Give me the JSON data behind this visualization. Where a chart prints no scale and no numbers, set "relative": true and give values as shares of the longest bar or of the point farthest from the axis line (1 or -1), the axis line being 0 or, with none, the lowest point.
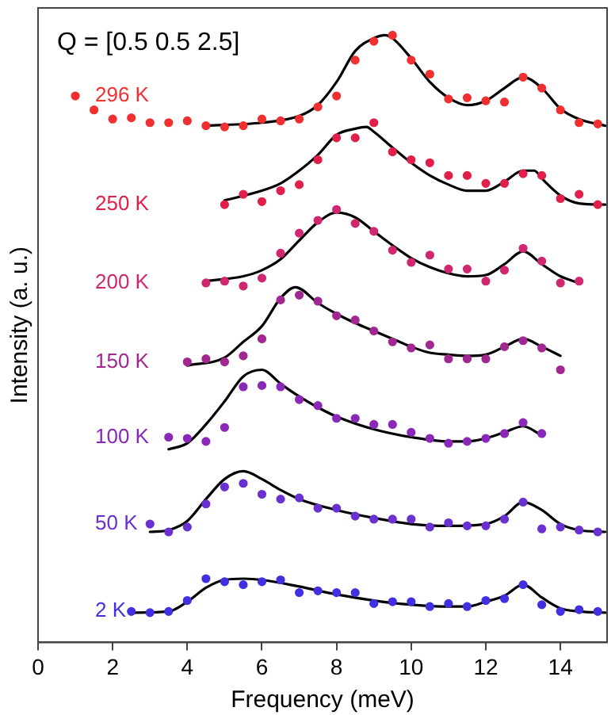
{
  "chart_data": {
    "type": "scatter",
    "title": "Q = [0.5 0.5 2.5]",
    "xlabel": "Frequency (meV)",
    "ylabel": "Intensity (a. u.)",
    "xlim": [
      0,
      15.25
    ],
    "xticks": [
      0,
      2,
      4,
      6,
      8,
      10,
      12,
      14
    ],
    "relative": true,
    "marker": "circle",
    "series": [
      {
        "name": "296 K",
        "color": "#f03030",
        "x": [
          1,
          1.5,
          2,
          2.5,
          3,
          3.5,
          4,
          4.5,
          5,
          5.5,
          6,
          6.5,
          7,
          7.5,
          8,
          8.5,
          9,
          9.5,
          10,
          10.5,
          11,
          11.5,
          12,
          12.5,
          13,
          13.5,
          14,
          14.5,
          15
        ],
        "values": [
          0.9,
          0.877,
          0.862,
          0.864,
          0.856,
          0.856,
          0.859,
          0.851,
          0.849,
          0.851,
          0.862,
          0.859,
          0.862,
          0.882,
          0.9,
          0.959,
          0.99,
          1,
          0.959,
          0.936,
          0.895,
          0.897,
          0.892,
          0.89,
          0.931,
          0.913,
          0.877,
          0.856,
          0.854
        ]
      },
      {
        "type": "line",
        "color": "#000000",
        "marker": "none",
        "x": [
          4.5,
          6,
          7,
          7.5,
          8,
          8.5,
          9,
          9.3,
          9.5,
          10,
          10.5,
          11,
          11.5,
          12,
          12.5,
          13,
          13.5,
          14,
          14.5,
          15.2
        ],
        "values": [
          0.851,
          0.856,
          0.867,
          0.885,
          0.923,
          0.974,
          0.995,
          1.0,
          0.995,
          0.962,
          0.923,
          0.897,
          0.885,
          0.892,
          0.913,
          0.931,
          0.913,
          0.879,
          0.862,
          0.851
        ]
      },
      {
        "name": "250 K",
        "color": "#e0204a",
        "x": [
          5,
          5.5,
          6,
          6.5,
          7,
          7.5,
          8,
          8.5,
          9,
          9.5,
          10,
          10.5,
          11,
          11.5,
          12,
          12.5,
          13,
          13.5,
          14,
          14.5,
          15
        ],
        "values": [
          0.721,
          0.738,
          0.726,
          0.744,
          0.754,
          0.795,
          0.831,
          0.831,
          0.856,
          0.808,
          0.795,
          0.79,
          0.769,
          0.769,
          0.756,
          0.756,
          0.772,
          0.769,
          0.731,
          0.738,
          0.721
        ]
      },
      {
        "type": "line",
        "color": "#000000",
        "marker": "none",
        "x": [
          5,
          6,
          6.5,
          7,
          7.5,
          8,
          8.5,
          8.8,
          9,
          9.5,
          10,
          10.5,
          11,
          11.5,
          12,
          12.5,
          13,
          13.3,
          13.5,
          14,
          14.5,
          15.2
        ],
        "values": [
          0.728,
          0.744,
          0.756,
          0.777,
          0.803,
          0.836,
          0.846,
          0.849,
          0.841,
          0.815,
          0.79,
          0.769,
          0.754,
          0.744,
          0.744,
          0.759,
          0.777,
          0.777,
          0.764,
          0.736,
          0.723,
          0.721
        ]
      },
      {
        "name": "200 K",
        "color": "#d02870",
        "x": [
          4.5,
          5,
          5.5,
          6,
          6.5,
          7,
          7.5,
          8,
          8.5,
          9,
          9.5,
          10,
          10.5,
          11,
          11.5,
          12,
          12.5,
          13,
          13.5,
          14,
          14.5
        ],
        "values": [
          0.592,
          0.595,
          0.587,
          0.6,
          0.641,
          0.674,
          0.695,
          0.713,
          0.69,
          0.677,
          0.646,
          0.626,
          0.638,
          0.615,
          0.615,
          0.595,
          0.613,
          0.649,
          0.628,
          0.592,
          0.595
        ]
      },
      {
        "type": "line",
        "color": "#000000",
        "marker": "none",
        "x": [
          4.5,
          5.5,
          6,
          6.5,
          7,
          7.5,
          8,
          8.5,
          9,
          9.5,
          10,
          10.5,
          11,
          11.5,
          12,
          12.5,
          13,
          13.5,
          14,
          14.5
        ],
        "values": [
          0.595,
          0.603,
          0.613,
          0.631,
          0.662,
          0.692,
          0.708,
          0.7,
          0.677,
          0.654,
          0.633,
          0.618,
          0.608,
          0.603,
          0.605,
          0.623,
          0.644,
          0.623,
          0.603,
          0.592
        ]
      },
      {
        "name": "150 K",
        "color": "#a02890",
        "x": [
          4,
          4.5,
          5,
          5.5,
          6,
          6.5,
          7,
          7.5,
          8,
          8.5,
          9,
          9.5,
          10,
          10.5,
          11,
          11.5,
          12,
          12.5,
          13,
          13.5,
          14
        ],
        "values": [
          0.462,
          0.467,
          0.462,
          0.472,
          0.5,
          0.564,
          0.572,
          0.562,
          0.538,
          0.531,
          0.513,
          0.495,
          0.485,
          0.49,
          0.467,
          0.467,
          0.467,
          0.487,
          0.497,
          0.485,
          0.449
        ]
      },
      {
        "type": "line",
        "color": "#000000",
        "marker": "none",
        "x": [
          4,
          5,
          5.5,
          6,
          6.5,
          6.9,
          7.5,
          8,
          8.5,
          9,
          9.5,
          10,
          10.5,
          11,
          11.5,
          12,
          12.5,
          13,
          13.5,
          14
        ],
        "values": [
          0.456,
          0.469,
          0.495,
          0.521,
          0.567,
          0.585,
          0.559,
          0.541,
          0.526,
          0.513,
          0.5,
          0.487,
          0.477,
          0.474,
          0.472,
          0.474,
          0.487,
          0.5,
          0.487,
          0.472
        ]
      },
      {
        "name": "100 K",
        "color": "#8a28b8",
        "x": [
          3.5,
          4,
          4.5,
          5,
          5.5,
          6,
          6.5,
          7,
          7.5,
          8,
          8.5,
          9,
          9.5,
          10,
          10.5,
          11,
          11.5,
          12,
          12.5,
          13,
          13.5
        ],
        "values": [
          0.338,
          0.336,
          0.331,
          0.354,
          0.421,
          0.423,
          0.421,
          0.4,
          0.39,
          0.369,
          0.369,
          0.359,
          0.359,
          0.346,
          0.336,
          0.328,
          0.331,
          0.336,
          0.344,
          0.362,
          0.344
        ]
      },
      {
        "type": "line",
        "color": "#000000",
        "marker": "none",
        "x": [
          3.5,
          4,
          4.5,
          5,
          5.5,
          6,
          6.5,
          7,
          7.5,
          8,
          9,
          10,
          11,
          11.5,
          12,
          12.5,
          13,
          13.5
        ],
        "values": [
          0.318,
          0.328,
          0.359,
          0.397,
          0.438,
          0.449,
          0.426,
          0.405,
          0.387,
          0.372,
          0.351,
          0.338,
          0.331,
          0.331,
          0.336,
          0.346,
          0.356,
          0.341
        ]
      },
      {
        "name": "50 K",
        "color": "#6a30d0",
        "x": [
          3,
          3.5,
          4,
          4.5,
          5,
          5.5,
          6,
          6.5,
          7,
          7.5,
          8,
          8.5,
          9,
          9.5,
          10,
          10.5,
          11,
          11.5,
          12,
          12.5,
          13,
          13.5,
          14,
          14.5,
          15
        ],
        "values": [
          0.195,
          0.182,
          0.19,
          0.228,
          0.256,
          0.262,
          0.244,
          0.236,
          0.238,
          0.221,
          0.221,
          0.208,
          0.203,
          0.203,
          0.203,
          0.19,
          0.197,
          0.192,
          0.192,
          0.203,
          0.231,
          0.187,
          0.19,
          0.185,
          0.182
        ]
      },
      {
        "type": "line",
        "color": "#000000",
        "marker": "none",
        "x": [
          3,
          3.5,
          4,
          4.5,
          5,
          5.5,
          6,
          6.5,
          7,
          8,
          9,
          10,
          11,
          12,
          12.5,
          13,
          13.5,
          14,
          14.5,
          15.2
        ],
        "values": [
          0.182,
          0.185,
          0.2,
          0.236,
          0.269,
          0.282,
          0.269,
          0.251,
          0.236,
          0.218,
          0.205,
          0.195,
          0.192,
          0.195,
          0.208,
          0.231,
          0.218,
          0.195,
          0.185,
          0.182
        ]
      },
      {
        "name": "2 K",
        "color": "#4030e0",
        "x": [
          2.5,
          3,
          3.5,
          4,
          4.5,
          5,
          5.5,
          6,
          6.5,
          7,
          7.5,
          8,
          8.5,
          9,
          9.5,
          10,
          10.5,
          11,
          11.5,
          12,
          12.5,
          13,
          13.5,
          14,
          14.5,
          15
        ],
        "values": [
          0.051,
          0.049,
          0.051,
          0.069,
          0.105,
          0.1,
          0.095,
          0.1,
          0.103,
          0.082,
          0.085,
          0.082,
          0.082,
          0.064,
          0.067,
          0.067,
          0.059,
          0.064,
          0.059,
          0.069,
          0.072,
          0.095,
          0.062,
          0.051,
          0.054,
          0.051
        ]
      },
      {
        "type": "line",
        "color": "#000000",
        "marker": "none",
        "x": [
          2.5,
          3.5,
          4,
          4.5,
          5,
          5.5,
          6,
          7,
          8,
          9,
          10,
          11,
          11.5,
          12,
          12.5,
          13,
          13.5,
          14,
          14.5,
          15.2
        ],
        "values": [
          0.049,
          0.051,
          0.067,
          0.09,
          0.103,
          0.105,
          0.103,
          0.092,
          0.079,
          0.069,
          0.062,
          0.059,
          0.059,
          0.067,
          0.077,
          0.095,
          0.074,
          0.056,
          0.051,
          0.049
        ]
      }
    ]
  }
}
